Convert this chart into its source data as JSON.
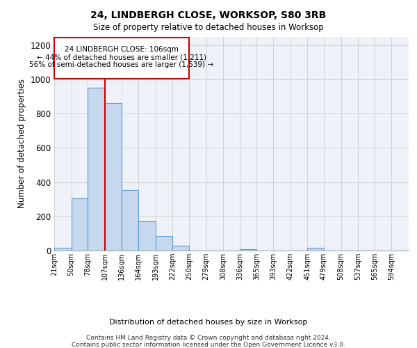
{
  "title1": "24, LINDBERGH CLOSE, WORKSOP, S80 3RB",
  "title2": "Size of property relative to detached houses in Worksop",
  "xlabel": "Distribution of detached houses by size in Worksop",
  "ylabel": "Number of detached properties",
  "bin_labels": [
    "21sqm",
    "50sqm",
    "78sqm",
    "107sqm",
    "136sqm",
    "164sqm",
    "193sqm",
    "222sqm",
    "250sqm",
    "279sqm",
    "308sqm",
    "336sqm",
    "365sqm",
    "393sqm",
    "422sqm",
    "451sqm",
    "479sqm",
    "508sqm",
    "537sqm",
    "565sqm",
    "594sqm"
  ],
  "bar_values": [
    15,
    305,
    950,
    860,
    355,
    170,
    85,
    30,
    0,
    0,
    0,
    10,
    0,
    0,
    0,
    15,
    0,
    0,
    0,
    0,
    0
  ],
  "bar_color": "#c5d8ed",
  "bar_edge_color": "#5b9bd5",
  "grid_color": "#cccccc",
  "vline_x_idx": 3,
  "vline_color": "#cc0000",
  "annotation_line1": "24 LINDBERGH CLOSE: 106sqm",
  "annotation_line2": "← 44% of detached houses are smaller (1,211)",
  "annotation_line3": "56% of semi-detached houses are larger (1,539) →",
  "annotation_box_color": "#cc0000",
  "ylim": [
    0,
    1250
  ],
  "yticks": [
    0,
    200,
    400,
    600,
    800,
    1000,
    1200
  ],
  "bin_edges": [
    21,
    50,
    78,
    107,
    136,
    164,
    193,
    222,
    250,
    279,
    308,
    336,
    365,
    393,
    422,
    451,
    479,
    508,
    537,
    565,
    594,
    623
  ],
  "footer_line1": "Contains HM Land Registry data © Crown copyright and database right 2024.",
  "footer_line2": "Contains public sector information licensed under the Open Government Licence v3.0."
}
